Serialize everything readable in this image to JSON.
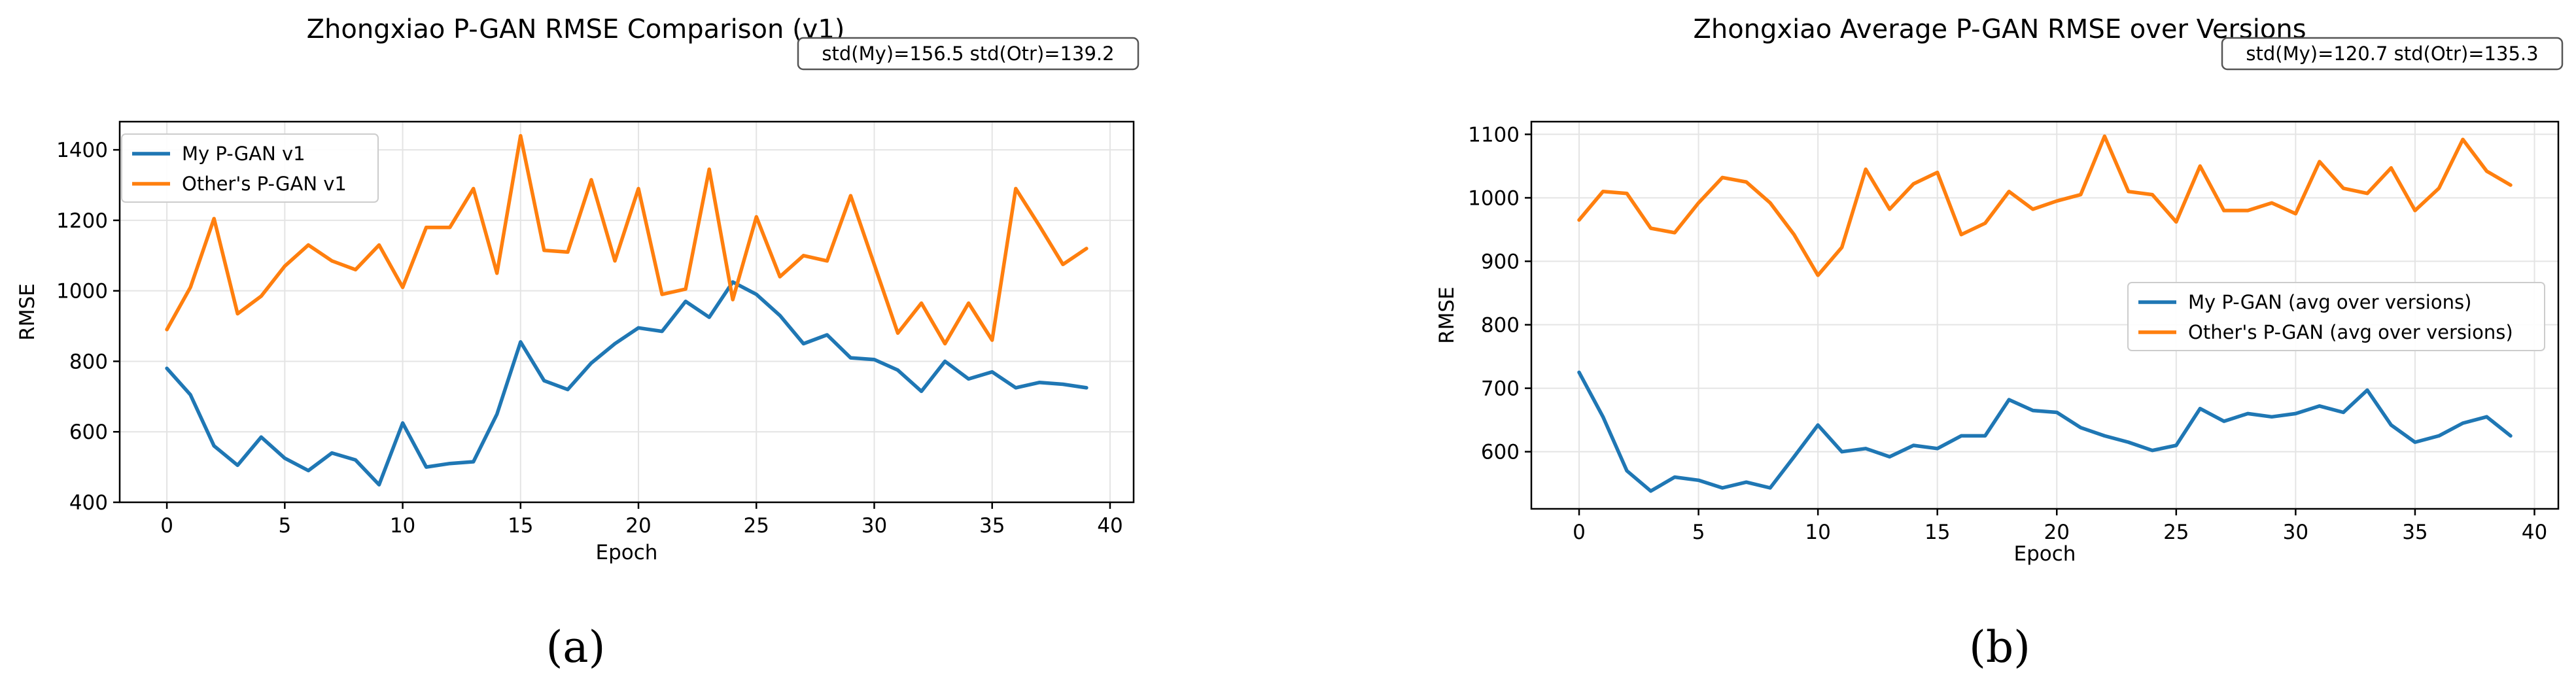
{
  "chart_data": [
    {
      "type": "line",
      "title": "Zhongxiao P-GAN RMSE Comparison (v1)",
      "xlabel": "Epoch",
      "ylabel": "RMSE",
      "xlim": [
        -2,
        41
      ],
      "ylim": [
        400,
        1480
      ],
      "xticks": [
        0,
        5,
        10,
        15,
        20,
        25,
        30,
        35,
        40
      ],
      "yticks": [
        400,
        600,
        800,
        1000,
        1200,
        1400
      ],
      "grid": true,
      "legend_position": "upper-left",
      "annotation": "std(My)=156.5     std(Otr)=139.2",
      "caption": "(a)",
      "x": [
        0,
        1,
        2,
        3,
        4,
        5,
        6,
        7,
        8,
        9,
        10,
        11,
        12,
        13,
        14,
        15,
        16,
        17,
        18,
        19,
        20,
        21,
        22,
        23,
        24,
        25,
        26,
        27,
        28,
        29,
        30,
        31,
        32,
        33,
        34,
        35,
        36,
        37,
        38,
        39
      ],
      "series": [
        {
          "name": "My P-GAN v1",
          "color": "#1f77b4",
          "values": [
            780,
            705,
            560,
            505,
            585,
            525,
            490,
            540,
            520,
            450,
            625,
            500,
            510,
            515,
            650,
            855,
            745,
            720,
            795,
            850,
            895,
            885,
            970,
            925,
            1025,
            990,
            930,
            850,
            875,
            810,
            805,
            775,
            715,
            800,
            750,
            770,
            725,
            740,
            735,
            725
          ]
        },
        {
          "name": "Other's P-GAN v1",
          "color": "#ff7f0e",
          "values": [
            890,
            1010,
            1205,
            935,
            985,
            1070,
            1130,
            1085,
            1060,
            1130,
            1010,
            1180,
            1180,
            1290,
            1050,
            1440,
            1115,
            1110,
            1315,
            1085,
            1290,
            990,
            1005,
            1345,
            975,
            1210,
            1040,
            1100,
            1085,
            1270,
            1075,
            880,
            965,
            850,
            965,
            860,
            1290,
            1185,
            1075,
            1120
          ]
        }
      ]
    },
    {
      "type": "line",
      "title": "Zhongxiao Average P-GAN RMSE over Versions",
      "xlabel": "Epoch",
      "ylabel": "RMSE",
      "xlim": [
        -2,
        41
      ],
      "ylim": [
        510,
        1120
      ],
      "xticks": [
        0,
        5,
        10,
        15,
        20,
        25,
        30,
        35,
        40
      ],
      "yticks": [
        600,
        700,
        800,
        900,
        1000,
        1100
      ],
      "grid": true,
      "legend_position": "center-right",
      "annotation": "std(My)=120.7     std(Otr)=135.3",
      "caption": "(b)",
      "x": [
        0,
        1,
        2,
        3,
        4,
        5,
        6,
        7,
        8,
        9,
        10,
        11,
        12,
        13,
        14,
        15,
        16,
        17,
        18,
        19,
        20,
        21,
        22,
        23,
        24,
        25,
        26,
        27,
        28,
        29,
        30,
        31,
        32,
        33,
        34,
        35,
        36,
        37,
        38,
        39
      ],
      "series": [
        {
          "name": "My P-GAN (avg over versions)",
          "color": "#1f77b4",
          "values": [
            725,
            655,
            570,
            538,
            560,
            555,
            543,
            552,
            543,
            592,
            642,
            600,
            605,
            592,
            610,
            605,
            625,
            625,
            682,
            665,
            662,
            638,
            625,
            615,
            602,
            610,
            668,
            648,
            660,
            655,
            660,
            672,
            662,
            697,
            642,
            615,
            625,
            645,
            655,
            625
          ]
        },
        {
          "name": "Other's P-GAN (avg over versions)",
          "color": "#ff7f0e",
          "values": [
            965,
            1010,
            1007,
            952,
            945,
            992,
            1032,
            1025,
            992,
            942,
            878,
            922,
            1045,
            982,
            1022,
            1040,
            942,
            960,
            1010,
            982,
            995,
            1005,
            1097,
            1010,
            1005,
            962,
            1050,
            980,
            980,
            992,
            975,
            1057,
            1015,
            1007,
            1047,
            980,
            1015,
            1092,
            1042,
            1020
          ]
        }
      ]
    }
  ]
}
